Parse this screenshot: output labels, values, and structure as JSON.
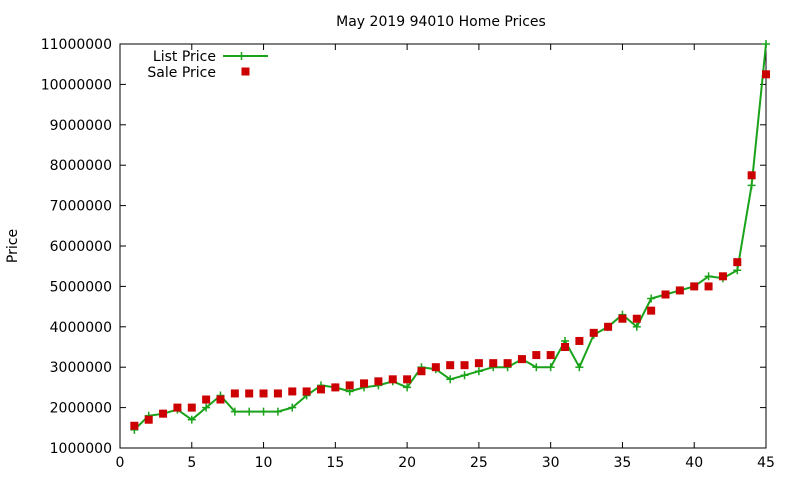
{
  "chart_data": {
    "type": "line",
    "title": "May 2019 94010 Home Prices",
    "xlabel": "",
    "ylabel": "Price",
    "xlim": [
      0,
      45
    ],
    "ylim": [
      1000000,
      11000000
    ],
    "xticks": [
      0,
      5,
      10,
      15,
      20,
      25,
      30,
      35,
      40,
      45
    ],
    "yticks": [
      1000000,
      2000000,
      3000000,
      4000000,
      5000000,
      6000000,
      7000000,
      8000000,
      9000000,
      10000000,
      11000000
    ],
    "grid": false,
    "legend_position": "top-left",
    "series": [
      {
        "name": "List Price",
        "style": "line-with-plus-markers",
        "color": "#1aa31a",
        "x": [
          1,
          2,
          3,
          4,
          5,
          6,
          7,
          8,
          9,
          10,
          11,
          12,
          13,
          14,
          15,
          16,
          17,
          18,
          19,
          20,
          21,
          22,
          23,
          24,
          25,
          26,
          27,
          28,
          29,
          30,
          31,
          32,
          33,
          34,
          35,
          36,
          37,
          38,
          39,
          40,
          41,
          42,
          43,
          44,
          45
        ],
        "values": [
          1450000,
          1800000,
          1850000,
          1950000,
          1700000,
          2000000,
          2300000,
          1900000,
          1900000,
          1900000,
          1900000,
          2000000,
          2300000,
          2550000,
          2500000,
          2400000,
          2500000,
          2550000,
          2650000,
          2500000,
          3000000,
          2950000,
          2700000,
          2800000,
          2900000,
          3000000,
          3000000,
          3200000,
          3000000,
          3000000,
          3650000,
          3000000,
          3800000,
          4000000,
          4300000,
          4000000,
          4700000,
          4800000,
          4900000,
          5000000,
          5250000,
          5200000,
          5400000,
          7500000,
          11000000
        ]
      },
      {
        "name": "Sale Price",
        "style": "square-markers",
        "color": "#cc0000",
        "x": [
          1,
          2,
          3,
          4,
          5,
          6,
          7,
          8,
          9,
          10,
          11,
          12,
          13,
          14,
          15,
          16,
          17,
          18,
          19,
          20,
          21,
          22,
          23,
          24,
          25,
          26,
          27,
          28,
          29,
          30,
          31,
          32,
          33,
          34,
          35,
          36,
          37,
          38,
          39,
          40,
          41,
          42,
          43,
          44,
          45
        ],
        "values": [
          1550000,
          1700000,
          1850000,
          2000000,
          2000000,
          2200000,
          2200000,
          2350000,
          2350000,
          2350000,
          2350000,
          2400000,
          2400000,
          2450000,
          2500000,
          2550000,
          2600000,
          2650000,
          2700000,
          2700000,
          2900000,
          3000000,
          3050000,
          3050000,
          3100000,
          3100000,
          3100000,
          3200000,
          3300000,
          3300000,
          3500000,
          3650000,
          3850000,
          4000000,
          4200000,
          4200000,
          4400000,
          4800000,
          4900000,
          5000000,
          5000000,
          5250000,
          5600000,
          7750000,
          10250000
        ]
      }
    ]
  }
}
